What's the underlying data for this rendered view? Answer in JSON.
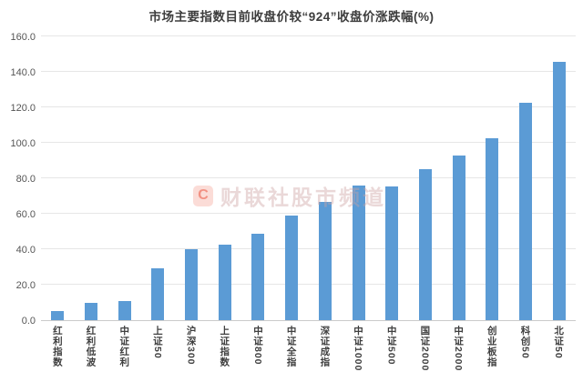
{
  "page": {
    "background": "#ffffff"
  },
  "watermark": {
    "logo_letter": "C",
    "text": "财联社股市频道"
  },
  "chart_data": {
    "type": "bar",
    "title": "市场主要指数目前收盘价较“924”收盘价涨跌幅(%)",
    "categories": [
      "红利指数",
      "红利低波",
      "中证红利",
      "上证50",
      "沪深300",
      "上证指数",
      "中证800",
      "中证全指",
      "深证成指",
      "中证1000",
      "中证500",
      "国证2000",
      "中证2000",
      "创业板指",
      "科创50",
      "北证50"
    ],
    "values": [
      5.3,
      9.8,
      10.8,
      29.2,
      39.8,
      42.4,
      48.5,
      59.0,
      66.5,
      75.8,
      75.2,
      85.2,
      93.0,
      102.5,
      122.5,
      145.5
    ],
    "xlabel": "",
    "ylabel": "",
    "ylim": [
      0,
      160
    ],
    "ytick_step": 20,
    "ytick_labels": [
      "0.0",
      "20.0",
      "40.0",
      "60.0",
      "80.0",
      "100.0",
      "120.0",
      "140.0",
      "160.0"
    ],
    "grid": "horizontal",
    "legend": "none",
    "bar_color": "#5B9BD5",
    "gridline_color": "#e6e6e6",
    "axisline_color": "#cbcbcb"
  }
}
